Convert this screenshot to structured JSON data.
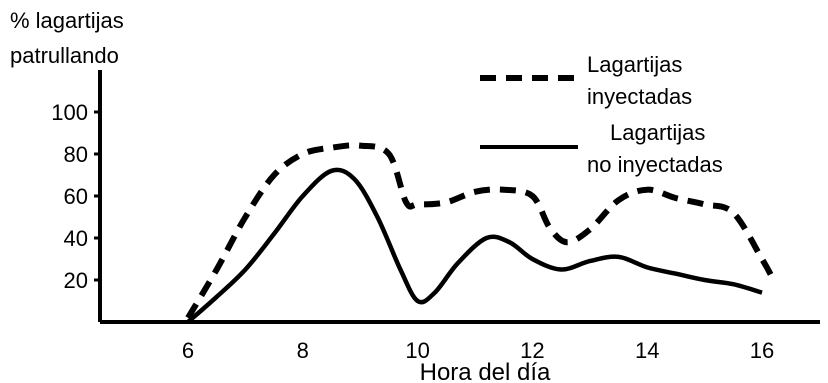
{
  "chart_data": {
    "type": "line",
    "title": "",
    "ylabel": [
      "% lagartijas",
      "patrullando"
    ],
    "xlabel": "Hora del día",
    "xlim": [
      4.5,
      17.3
    ],
    "ylim": [
      0,
      110
    ],
    "x_ticks": [
      6,
      8,
      10,
      12,
      14,
      16
    ],
    "y_ticks": [
      20,
      40,
      60,
      80,
      100
    ],
    "grid": false,
    "legend_position": "top-right",
    "series": [
      {
        "name": "Lagartijas inyectadas",
        "style": "dashed",
        "color": "#000000",
        "x": [
          6.0,
          6.5,
          7.0,
          7.5,
          8.0,
          8.5,
          9.0,
          9.5,
          9.8,
          10.0,
          10.5,
          11.0,
          11.5,
          12.0,
          12.3,
          12.6,
          13.0,
          13.5,
          14.0,
          14.5,
          15.0,
          15.5,
          16.0,
          16.2
        ],
        "y": [
          2,
          25,
          50,
          70,
          80,
          83,
          84,
          80,
          57,
          56,
          57,
          62,
          63,
          60,
          45,
          38,
          44,
          58,
          63,
          59,
          56,
          52,
          30,
          20
        ]
      },
      {
        "name": "Lagartijas no inyectadas",
        "style": "solid",
        "color": "#000000",
        "x": [
          6.0,
          6.5,
          7.0,
          7.5,
          8.0,
          8.5,
          8.9,
          9.3,
          9.7,
          10.0,
          10.3,
          10.7,
          11.2,
          11.6,
          12.0,
          12.5,
          13.0,
          13.5,
          14.0,
          14.5,
          15.0,
          15.5,
          16.0
        ],
        "y": [
          0,
          12,
          25,
          42,
          60,
          72,
          68,
          50,
          25,
          10,
          14,
          28,
          40,
          38,
          30,
          25,
          29,
          31,
          26,
          23,
          20,
          18,
          14
        ]
      }
    ],
    "legend": [
      {
        "label": [
          "Lagartijas",
          "inyectadas"
        ],
        "style": "dashed"
      },
      {
        "label": [
          "Lagartijas",
          "no inyectadas"
        ],
        "style": "solid"
      }
    ]
  }
}
